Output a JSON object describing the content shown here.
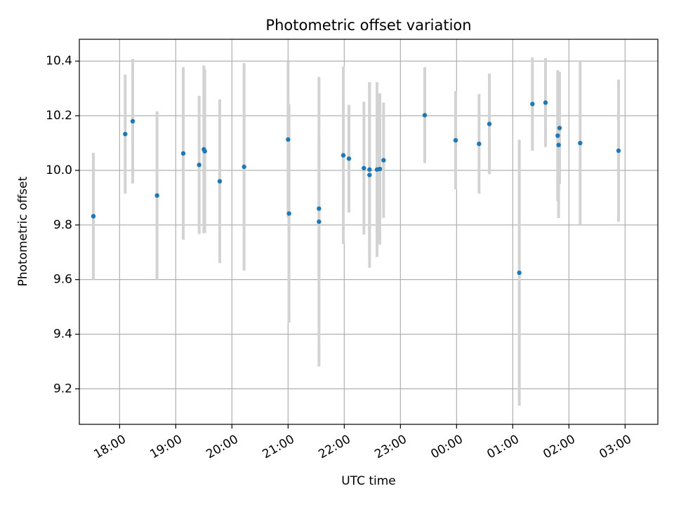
{
  "chart_data": {
    "type": "scatter",
    "title": "Photometric offset variation",
    "xlabel": "UTC time",
    "ylabel": "Photometric offset",
    "x_unit": "hours UTC (past midnight wraps beyond 24)",
    "xlim": [
      "17:17",
      "03:35"
    ],
    "ylim": [
      9.07,
      10.48
    ],
    "grid": true,
    "x_tick_labels": [
      "18:00",
      "19:00",
      "20:00",
      "21:00",
      "22:00",
      "23:00",
      "00:00",
      "01:00",
      "02:00",
      "03:00"
    ],
    "y_tick_labels": [
      "9.2",
      "9.4",
      "9.6",
      "9.8",
      "10.0",
      "10.2",
      "10.4"
    ],
    "marker_color": "#1f77b4",
    "errorbar_color": "#d3d3d3",
    "points": [
      {
        "t": "17:32",
        "y": 9.832,
        "err": 0.232
      },
      {
        "t": "18:06",
        "y": 10.133,
        "err": 0.218
      },
      {
        "t": "18:14",
        "y": 10.18,
        "err": 0.228
      },
      {
        "t": "18:40",
        "y": 9.908,
        "err": 0.308
      },
      {
        "t": "19:08",
        "y": 10.062,
        "err": 0.316
      },
      {
        "t": "19:25",
        "y": 10.02,
        "err": 0.253
      },
      {
        "t": "19:30",
        "y": 10.077,
        "err": 0.307
      },
      {
        "t": "19:31",
        "y": 10.07,
        "err": 0.3
      },
      {
        "t": "19:47",
        "y": 9.96,
        "err": 0.3
      },
      {
        "t": "20:13",
        "y": 10.013,
        "err": 0.38
      },
      {
        "t": "21:00",
        "y": 10.113,
        "err": 0.285
      },
      {
        "t": "21:01",
        "y": 9.842,
        "err": 0.4
      },
      {
        "t": "21:33",
        "y": 9.86,
        "err": 0.255
      },
      {
        "t": "21:33",
        "y": 9.812,
        "err": 0.53
      },
      {
        "t": "21:59",
        "y": 10.055,
        "err": 0.325
      },
      {
        "t": "22:05",
        "y": 10.043,
        "err": 0.197
      },
      {
        "t": "22:21",
        "y": 10.008,
        "err": 0.243
      },
      {
        "t": "22:27",
        "y": 10.003,
        "err": 0.318
      },
      {
        "t": "22:27",
        "y": 9.983,
        "err": 0.34
      },
      {
        "t": "22:35",
        "y": 10.003,
        "err": 0.32
      },
      {
        "t": "22:38",
        "y": 10.005,
        "err": 0.277
      },
      {
        "t": "22:42",
        "y": 10.037,
        "err": 0.211
      },
      {
        "t": "23:26",
        "y": 10.202,
        "err": 0.176
      },
      {
        "t": "23:59",
        "y": 10.11,
        "err": 0.18
      },
      {
        "t": "00:24",
        "y": 10.097,
        "err": 0.182
      },
      {
        "t": "00:35",
        "y": 10.17,
        "err": 0.184
      },
      {
        "t": "01:07",
        "y": 9.625,
        "err": 0.487
      },
      {
        "t": "01:21",
        "y": 10.243,
        "err": 0.171
      },
      {
        "t": "01:35",
        "y": 10.248,
        "err": 0.163
      },
      {
        "t": "01:48",
        "y": 10.127,
        "err": 0.24
      },
      {
        "t": "01:49",
        "y": 10.093,
        "err": 0.268
      },
      {
        "t": "01:50",
        "y": 10.155,
        "err": 0.205
      },
      {
        "t": "02:12",
        "y": 10.1,
        "err": 0.3
      },
      {
        "t": "02:53",
        "y": 10.072,
        "err": 0.26
      }
    ]
  }
}
